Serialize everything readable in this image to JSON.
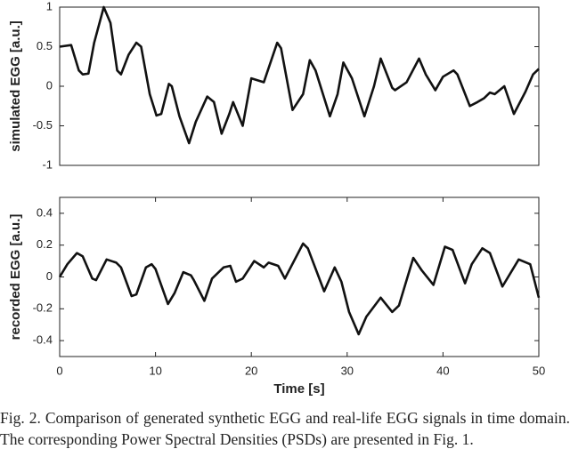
{
  "chart_data": [
    {
      "type": "line",
      "ylabel": "simulated EGG [a.u.]",
      "xlim": [
        0,
        50
      ],
      "ylim": [
        -1,
        1
      ],
      "yticks": [
        -1,
        -0.5,
        0,
        0.5,
        1
      ],
      "grid": false,
      "series": [
        {
          "color": "#111111",
          "x": [
            0,
            1.2,
            2,
            2.4,
            3,
            3.6,
            4.6,
            5.3,
            6,
            6.4,
            7.2,
            8,
            8.5,
            9.4,
            10.1,
            10.6,
            11.4,
            11.7,
            12.5,
            13.5,
            14.2,
            15.4,
            16.1,
            16.9,
            17.7,
            18.1,
            19.1,
            20,
            21.3,
            22.7,
            23.1,
            24.3,
            25.4,
            26.1,
            26.7,
            28.2,
            29,
            29.6,
            30.5,
            31.8,
            32.8,
            33.5,
            34.7,
            35,
            36.2,
            37.5,
            38.2,
            39.2,
            40,
            41.1,
            41.5,
            42.8,
            43.6,
            44.3,
            44.9,
            45.4,
            46.4,
            47.4,
            48.6,
            49.4,
            50
          ],
          "values": [
            0.5,
            0.52,
            0.2,
            0.15,
            0.16,
            0.55,
            1.0,
            0.8,
            0.2,
            0.15,
            0.4,
            0.55,
            0.5,
            -0.1,
            -0.37,
            -0.35,
            0.03,
            0.0,
            -0.38,
            -0.72,
            -0.45,
            -0.13,
            -0.2,
            -0.6,
            -0.35,
            -0.2,
            -0.5,
            0.1,
            0.05,
            0.55,
            0.48,
            -0.3,
            -0.1,
            0.33,
            0.2,
            -0.38,
            -0.1,
            0.3,
            0.1,
            -0.38,
            0.0,
            0.35,
            -0.02,
            -0.05,
            0.05,
            0.35,
            0.15,
            -0.05,
            0.12,
            0.2,
            0.15,
            -0.25,
            -0.2,
            -0.15,
            -0.08,
            -0.1,
            0.0,
            -0.35,
            -0.07,
            0.15,
            0.22
          ]
        }
      ]
    },
    {
      "type": "line",
      "ylabel": "recorded EGG [a.u.]",
      "xlabel": "Time [s]",
      "xlim": [
        0,
        50
      ],
      "xticks": [
        0,
        10,
        20,
        30,
        40,
        50
      ],
      "ylim": [
        -0.5,
        0.5
      ],
      "yticks": [
        -0.4,
        -0.2,
        0,
        0.2,
        0.4
      ],
      "grid": false,
      "series": [
        {
          "color": "#111111",
          "x": [
            0,
            0.8,
            1.8,
            2.4,
            3.4,
            3.8,
            4.9,
            5.9,
            6.4,
            7.5,
            8,
            9,
            9.6,
            10,
            11.3,
            12,
            12.9,
            13.7,
            14,
            15.1,
            15.9,
            17.1,
            17.8,
            18.4,
            19.1,
            20.3,
            21.3,
            21.8,
            22.8,
            23.5,
            25.4,
            25.9,
            27.6,
            28.7,
            29.4,
            30.2,
            31.2,
            32,
            33.5,
            34.7,
            35.4,
            36.9,
            37.8,
            39,
            40.2,
            41,
            42.3,
            43,
            44.1,
            44.9,
            46.2,
            47.9,
            49.1,
            50
          ],
          "values": [
            0.0,
            0.08,
            0.15,
            0.13,
            -0.01,
            -0.02,
            0.11,
            0.09,
            0.06,
            -0.12,
            -0.11,
            0.06,
            0.08,
            0.05,
            -0.17,
            -0.1,
            0.03,
            0.01,
            -0.02,
            -0.15,
            -0.01,
            0.06,
            0.07,
            -0.03,
            -0.01,
            0.1,
            0.06,
            0.09,
            0.07,
            -0.01,
            0.21,
            0.18,
            -0.09,
            0.06,
            -0.03,
            -0.22,
            -0.36,
            -0.25,
            -0.13,
            -0.22,
            -0.18,
            0.12,
            0.04,
            -0.05,
            0.19,
            0.17,
            -0.04,
            0.08,
            0.18,
            0.15,
            -0.06,
            0.11,
            0.08,
            -0.13
          ]
        }
      ]
    }
  ],
  "caption": "Fig. 2. Comparison of generated synthetic EGG and real-life EGG signals in time domain. The corresponding Power Spectral Densities (PSDs) are presented in Fig. 1."
}
